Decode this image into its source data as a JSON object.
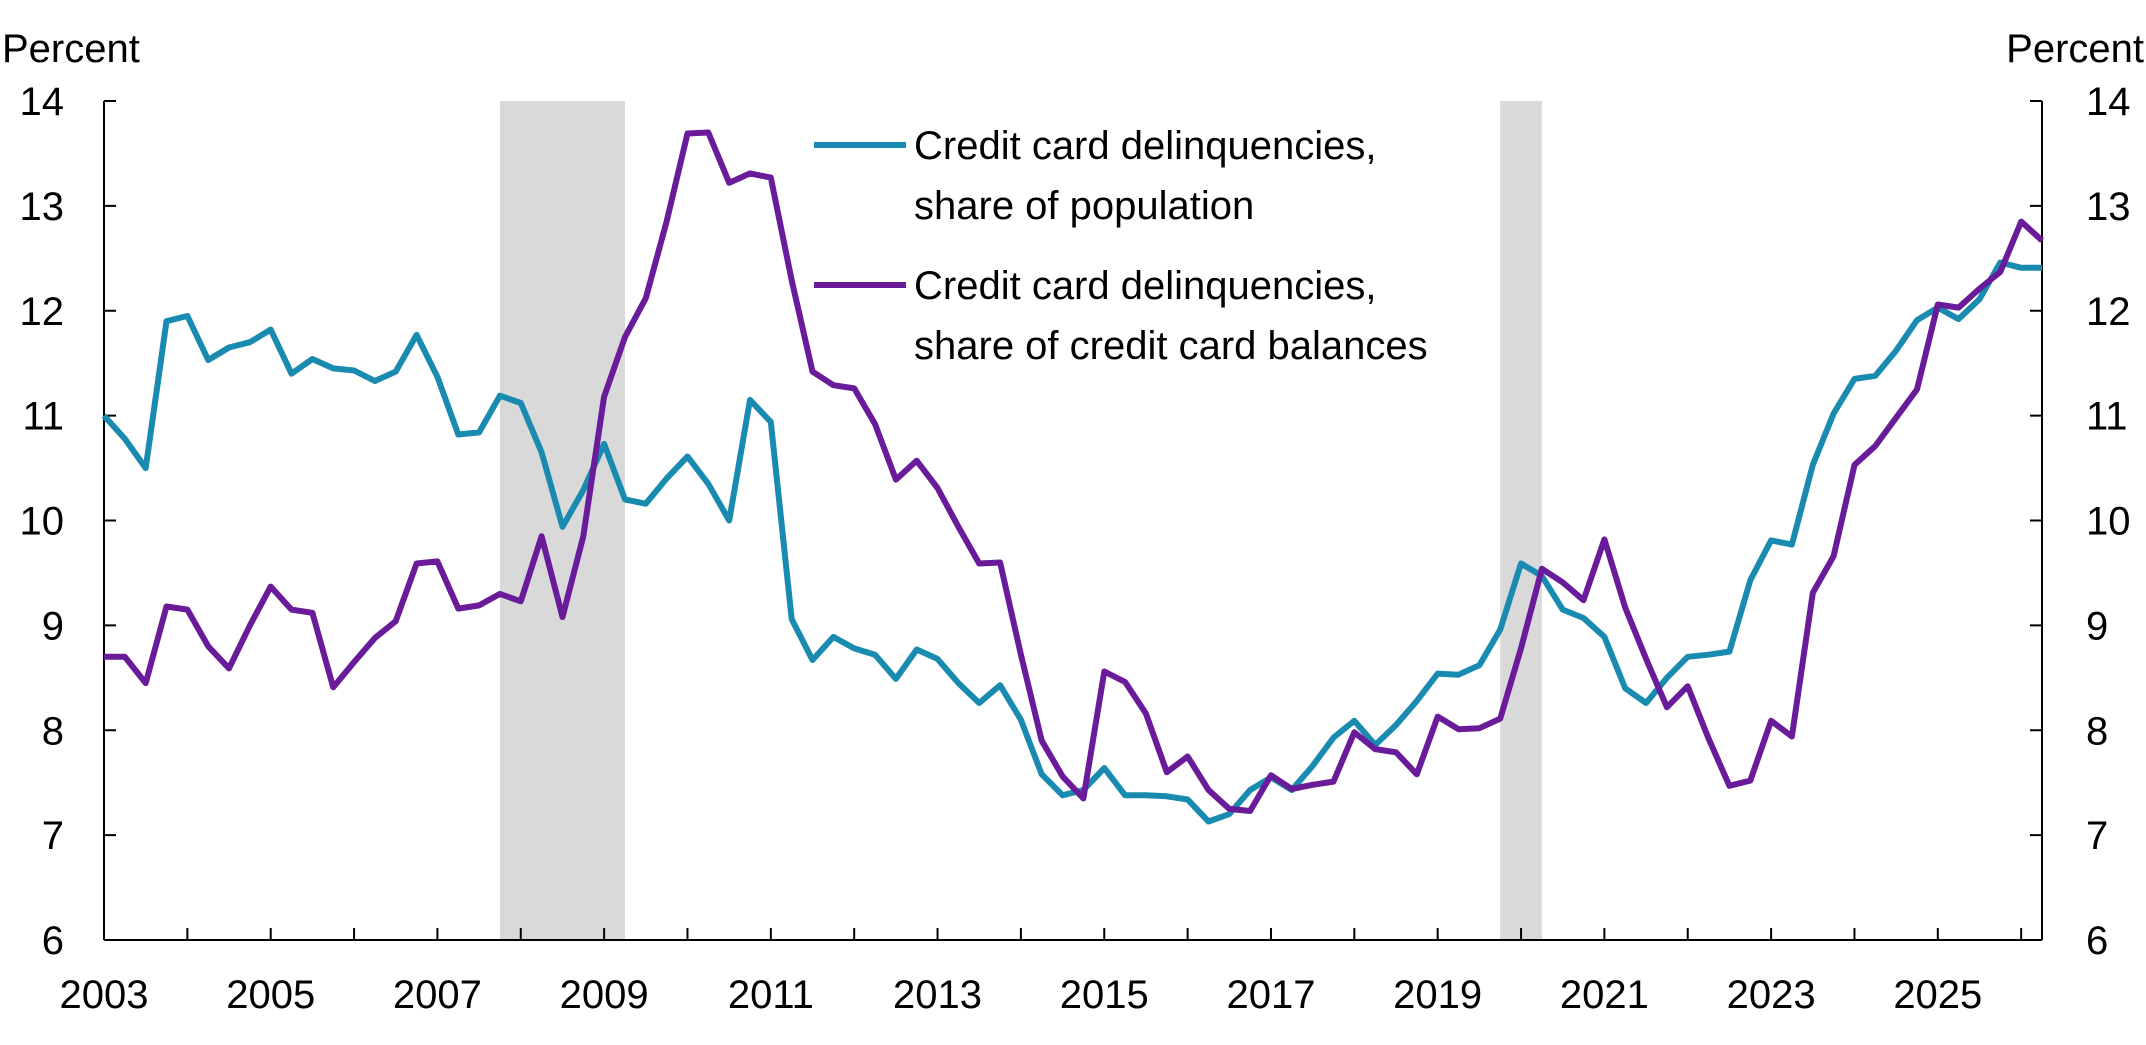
{
  "chart_data": {
    "type": "line",
    "title": "",
    "y_unit_left": "Percent",
    "y_unit_right": "Percent",
    "ylim": [
      6,
      14
    ],
    "y_ticks": [
      6,
      7,
      8,
      9,
      10,
      11,
      12,
      13,
      14
    ],
    "xlim": [
      2003.0,
      2026.25
    ],
    "x_ticks": [
      "2003",
      "2005",
      "2007",
      "2009",
      "2011",
      "2013",
      "2015",
      "2017",
      "2019",
      "2021",
      "2023",
      "2025"
    ],
    "grid": false,
    "legend_position": "top-center",
    "recessions": [
      {
        "start": 2007.75,
        "end": 2009.25
      },
      {
        "start": 2019.75,
        "end": 2020.25
      }
    ],
    "colors": {
      "recession": "#d9d9d9",
      "axis": "#000000"
    },
    "series": [
      {
        "name": "Credit card delinquencies, share of population",
        "legend_lines": [
          "Credit card delinquencies,",
          "share of population"
        ],
        "color": "#1a8bb0",
        "x": [
          2003.0,
          2003.25,
          2003.5,
          2003.75,
          2004.0,
          2004.25,
          2004.5,
          2004.75,
          2005.0,
          2005.25,
          2005.5,
          2005.75,
          2006.0,
          2006.25,
          2006.5,
          2006.75,
          2007.0,
          2007.25,
          2007.5,
          2007.75,
          2008.0,
          2008.25,
          2008.5,
          2008.75,
          2009.0,
          2009.25,
          2009.5,
          2009.75,
          2010.0,
          2010.25,
          2010.5,
          2010.75,
          2011.0,
          2011.25,
          2011.5,
          2011.75,
          2012.0,
          2012.25,
          2012.5,
          2012.75,
          2013.0,
          2013.25,
          2013.5,
          2013.75,
          2014.0,
          2014.25,
          2014.5,
          2014.75,
          2015.0,
          2015.25,
          2015.5,
          2015.75,
          2016.0,
          2016.25,
          2016.5,
          2016.75,
          2017.0,
          2017.25,
          2017.5,
          2017.75,
          2018.0,
          2018.25,
          2018.5,
          2018.75,
          2019.0,
          2019.25,
          2019.5,
          2019.75,
          2020.0,
          2020.25,
          2020.5,
          2020.75,
          2021.0,
          2021.25,
          2021.5,
          2021.75,
          2022.0,
          2022.25,
          2022.5,
          2022.75,
          2023.0,
          2023.25,
          2023.5,
          2023.75,
          2024.0,
          2024.25,
          2024.5,
          2024.75,
          2025.0,
          2025.25,
          2025.5,
          2025.75,
          2026.0,
          2026.25
        ],
        "values": [
          11.0,
          10.78,
          10.5,
          11.9,
          11.95,
          11.53,
          11.65,
          11.7,
          11.82,
          11.4,
          11.54,
          11.45,
          11.43,
          11.33,
          11.42,
          11.77,
          11.37,
          10.82,
          10.84,
          11.19,
          11.12,
          10.65,
          9.94,
          10.29,
          10.73,
          10.2,
          10.16,
          10.4,
          10.61,
          10.35,
          10.0,
          11.15,
          10.94,
          9.06,
          8.67,
          8.89,
          8.78,
          8.72,
          8.49,
          8.77,
          8.68,
          8.45,
          8.26,
          8.43,
          8.1,
          7.58,
          7.38,
          7.43,
          7.64,
          7.38,
          7.38,
          7.37,
          7.34,
          7.13,
          7.2,
          7.43,
          7.55,
          7.43,
          7.66,
          7.93,
          8.09,
          7.86,
          8.05,
          8.28,
          8.54,
          8.53,
          8.62,
          8.96,
          9.59,
          9.47,
          9.15,
          9.07,
          8.89,
          8.4,
          8.26,
          8.5,
          8.7,
          8.72,
          8.75,
          9.43,
          9.81,
          9.77,
          10.53,
          11.02,
          11.35,
          11.38,
          11.62,
          11.91,
          12.03,
          11.92,
          12.11,
          12.46,
          12.41,
          12.41
        ]
      },
      {
        "name": "Credit card delinquencies, share of credit card balances",
        "legend_lines": [
          "Credit card delinquencies,",
          "share of credit card balances"
        ],
        "color": "#6a1b9a",
        "x": [
          2003.0,
          2003.25,
          2003.5,
          2003.75,
          2004.0,
          2004.25,
          2004.5,
          2004.75,
          2005.0,
          2005.25,
          2005.5,
          2005.75,
          2006.0,
          2006.25,
          2006.5,
          2006.75,
          2007.0,
          2007.25,
          2007.5,
          2007.75,
          2008.0,
          2008.25,
          2008.5,
          2008.75,
          2009.0,
          2009.25,
          2009.5,
          2009.75,
          2010.0,
          2010.25,
          2010.5,
          2010.75,
          2011.0,
          2011.25,
          2011.5,
          2011.75,
          2012.0,
          2012.25,
          2012.5,
          2012.75,
          2013.0,
          2013.25,
          2013.5,
          2013.75,
          2014.0,
          2014.25,
          2014.5,
          2014.75,
          2015.0,
          2015.25,
          2015.5,
          2015.75,
          2016.0,
          2016.25,
          2016.5,
          2016.75,
          2017.0,
          2017.25,
          2017.5,
          2017.75,
          2018.0,
          2018.25,
          2018.5,
          2018.75,
          2019.0,
          2019.25,
          2019.5,
          2019.75,
          2020.0,
          2020.25,
          2020.5,
          2020.75,
          2021.0,
          2021.25,
          2021.5,
          2021.75,
          2022.0,
          2022.25,
          2022.5,
          2022.75,
          2023.0,
          2023.25,
          2023.5,
          2023.75,
          2024.0,
          2024.25,
          2024.5,
          2024.75,
          2025.0,
          2025.25,
          2025.5,
          2025.75,
          2026.0,
          2026.25
        ],
        "values": [
          8.7,
          8.7,
          8.45,
          9.18,
          9.15,
          8.8,
          8.59,
          9.0,
          9.37,
          9.15,
          9.12,
          8.41,
          8.65,
          8.88,
          9.04,
          9.59,
          9.61,
          9.16,
          9.19,
          9.3,
          9.23,
          9.85,
          9.08,
          9.85,
          11.18,
          11.75,
          12.12,
          12.85,
          13.69,
          13.7,
          13.22,
          13.31,
          13.27,
          12.29,
          11.42,
          11.29,
          11.26,
          10.92,
          10.39,
          10.57,
          10.31,
          9.94,
          9.59,
          9.6,
          8.72,
          7.9,
          7.56,
          7.35,
          8.56,
          8.46,
          8.16,
          7.6,
          7.75,
          7.43,
          7.25,
          7.23,
          7.57,
          7.44,
          7.48,
          7.51,
          7.98,
          7.82,
          7.79,
          7.58,
          8.13,
          8.01,
          8.02,
          8.11,
          8.78,
          9.54,
          9.41,
          9.24,
          9.82,
          9.17,
          8.68,
          8.22,
          8.42,
          7.92,
          7.47,
          7.52,
          8.09,
          7.94,
          9.31,
          9.66,
          10.53,
          10.71,
          10.98,
          11.25,
          12.06,
          12.03,
          12.21,
          12.37,
          12.85,
          12.67
        ]
      }
    ]
  }
}
